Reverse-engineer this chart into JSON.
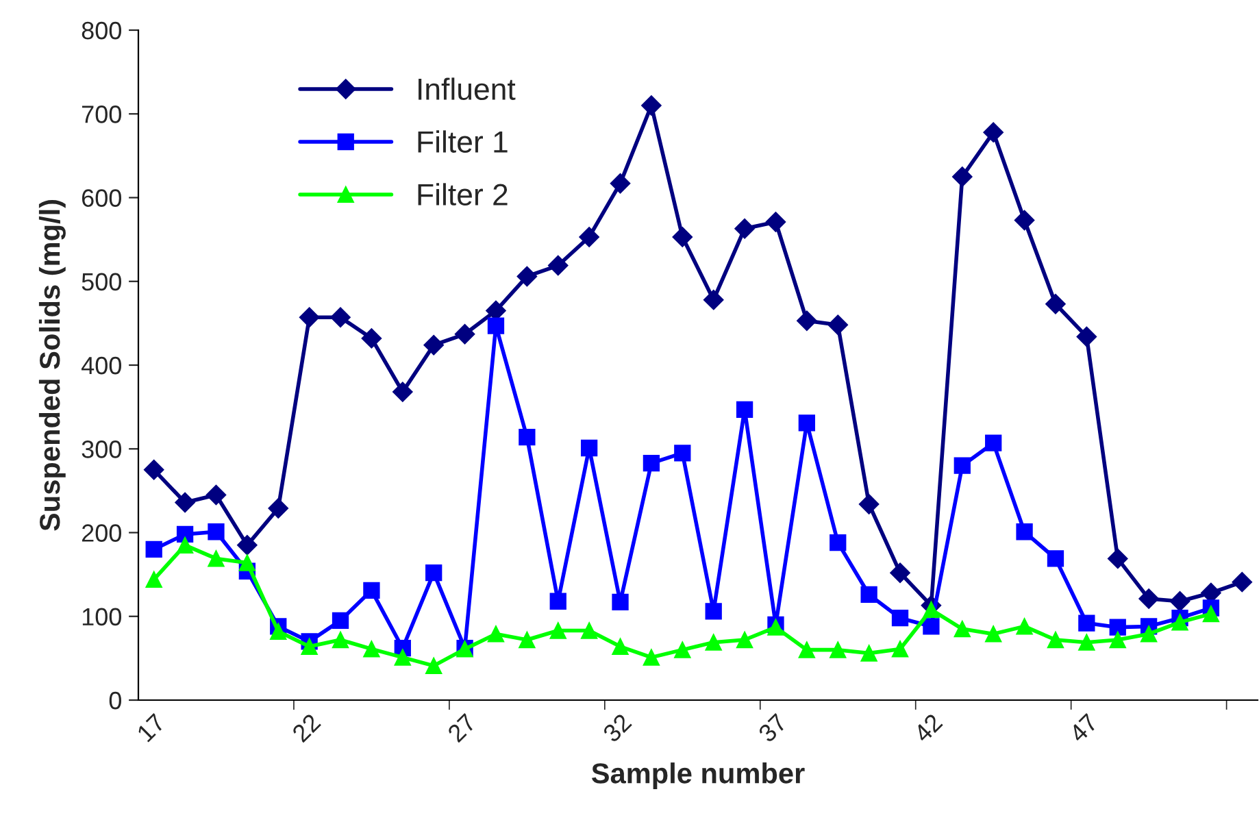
{
  "chart_data": {
    "type": "line",
    "xlabel": "Sample number",
    "ylabel": "Suspended Solids (mg/l)",
    "categories": [
      "17",
      null,
      null,
      null,
      null,
      "22",
      null,
      null,
      null,
      null,
      "27",
      null,
      null,
      null,
      null,
      "32",
      null,
      null,
      null,
      null,
      "37",
      null,
      null,
      null,
      null,
      "42",
      null,
      null,
      null,
      null,
      "47",
      null,
      null,
      null,
      null,
      null
    ],
    "series": [
      {
        "name": "Influent",
        "color": "#000080",
        "marker": "diamond",
        "values": [
          275,
          236,
          245,
          185,
          229,
          457,
          457,
          432,
          368,
          424,
          437,
          465,
          506,
          519,
          553,
          617,
          710,
          553,
          478,
          563,
          571,
          453,
          448,
          234,
          152,
          113,
          625,
          678,
          573,
          473,
          434,
          169,
          121,
          118,
          128,
          141
        ]
      },
      {
        "name": "Filter 1",
        "color": "#0000ff",
        "marker": "square",
        "values": [
          180,
          198,
          201,
          154,
          88,
          70,
          95,
          131,
          62,
          152,
          62,
          447,
          314,
          118,
          301,
          117,
          283,
          295,
          106,
          347,
          90,
          331,
          188,
          126,
          98,
          88,
          280,
          307,
          201,
          169,
          92,
          87,
          88,
          98,
          110,
          null
        ]
      },
      {
        "name": "Filter 2",
        "color": "#00ff00",
        "marker": "triangle",
        "values": [
          144,
          185,
          169,
          164,
          82,
          64,
          72,
          61,
          51,
          41,
          61,
          79,
          72,
          83,
          83,
          64,
          51,
          60,
          69,
          72,
          87,
          60,
          60,
          56,
          61,
          108,
          85,
          79,
          88,
          72,
          69,
          72,
          79,
          93,
          103,
          null
        ]
      }
    ],
    "ylim": [
      0,
      800
    ],
    "yticks": [
      0,
      100,
      200,
      300,
      400,
      500,
      600,
      700,
      800
    ],
    "grid": false,
    "legend": "top left",
    "line_style": "solid"
  }
}
